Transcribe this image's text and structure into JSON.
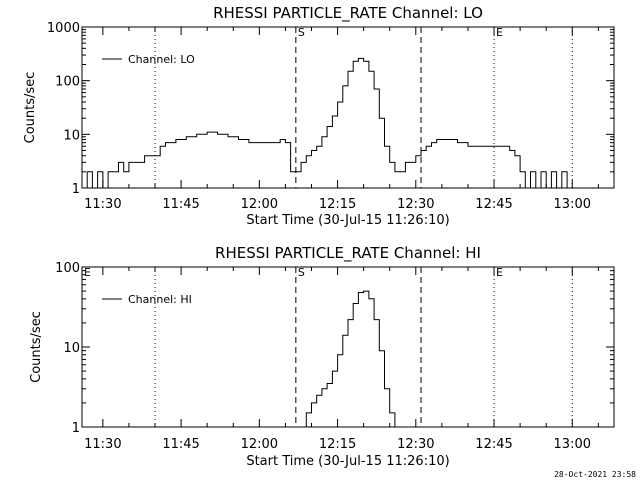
{
  "chart_data": [
    {
      "type": "line",
      "title": "RHESSI PARTICLE_RATE Channel: LO",
      "xlabel": "Start Time (30-Jul-15 11:26:10)",
      "ylabel": "Counts/sec",
      "y_scale": "log",
      "ylim": [
        1,
        1000
      ],
      "xlim": [
        "11:26",
        "13:08"
      ],
      "x_ticks": [
        "11:30",
        "11:45",
        "12:00",
        "12:15",
        "12:30",
        "12:45",
        "13:00"
      ],
      "y_ticks": [
        "1",
        "10",
        "100",
        "1000"
      ],
      "grid": false,
      "legend": {
        "placement": "top-left",
        "entries": [
          "Channel: LO"
        ]
      },
      "markers": [
        {
          "time": "11:40",
          "style": "dotted",
          "label": ""
        },
        {
          "time": "12:07",
          "style": "dashed",
          "label": "S"
        },
        {
          "time": "12:31",
          "style": "dashed",
          "label": ""
        },
        {
          "time": "12:45",
          "style": "dotted",
          "label": "E"
        },
        {
          "time": "13:00",
          "style": "dotted",
          "label": ""
        }
      ],
      "series": [
        {
          "name": "Channel: LO",
          "x": [
            "11:26",
            "11:27",
            "11:28",
            "11:29",
            "11:30",
            "11:31",
            "11:32",
            "11:33",
            "11:34",
            "11:35",
            "11:36",
            "11:37",
            "11:38",
            "11:39",
            "11:40",
            "11:41",
            "11:42",
            "11:44",
            "11:46",
            "11:48",
            "11:50",
            "11:52",
            "11:54",
            "11:56",
            "11:58",
            "12:00",
            "12:02",
            "12:04",
            "12:05",
            "12:06",
            "12:07",
            "12:08",
            "12:09",
            "12:10",
            "12:11",
            "12:12",
            "12:13",
            "12:14",
            "12:15",
            "12:16",
            "12:17",
            "12:18",
            "12:19",
            "12:20",
            "12:21",
            "12:22",
            "12:23",
            "12:24",
            "12:25",
            "12:26",
            "12:27",
            "12:28",
            "12:29",
            "12:30",
            "12:31",
            "12:32",
            "12:33",
            "12:34",
            "12:36",
            "12:38",
            "12:40",
            "12:42",
            "12:44",
            "12:46",
            "12:48",
            "12:49",
            "12:50",
            "12:51",
            "12:52",
            "12:53",
            "12:54",
            "12:55",
            "12:56",
            "12:57",
            "12:58",
            "12:59",
            "13:00",
            "13:01",
            "13:02",
            "13:03",
            "13:04",
            "13:05",
            "13:06",
            "13:07",
            "13:08"
          ],
          "y": [
            1,
            2,
            1,
            2,
            1,
            2,
            2,
            3,
            2,
            3,
            3,
            3,
            4,
            4,
            4,
            6,
            7,
            8,
            9,
            10,
            11,
            10,
            9,
            8,
            7,
            7,
            7,
            8,
            7,
            2,
            2,
            3,
            4,
            5,
            6,
            9,
            14,
            22,
            40,
            80,
            150,
            230,
            260,
            230,
            150,
            70,
            20,
            6,
            3,
            2,
            2,
            3,
            3,
            4,
            5,
            6,
            7,
            8,
            8,
            7,
            6,
            6,
            6,
            6,
            5,
            4,
            2,
            1,
            2,
            1,
            2,
            1,
            2,
            1,
            2,
            1,
            1,
            1,
            1,
            1,
            1,
            1,
            1,
            1,
            1
          ]
        }
      ]
    },
    {
      "type": "line",
      "title": "RHESSI PARTICLE_RATE Channel: HI",
      "xlabel": "Start Time (30-Jul-15 11:26:10)",
      "ylabel": "Counts/sec",
      "y_scale": "log",
      "ylim": [
        1,
        100
      ],
      "xlim": [
        "11:26",
        "13:08"
      ],
      "x_ticks": [
        "11:30",
        "11:45",
        "12:00",
        "12:15",
        "12:30",
        "12:45",
        "13:00"
      ],
      "y_ticks": [
        "1",
        "10",
        "100"
      ],
      "grid": false,
      "legend": {
        "placement": "top-left",
        "entries": [
          "Channel: HI"
        ]
      },
      "markers": [
        {
          "time": "11:26",
          "style": "none",
          "label": "E"
        },
        {
          "time": "11:40",
          "style": "dotted",
          "label": ""
        },
        {
          "time": "12:07",
          "style": "dashed",
          "label": "S"
        },
        {
          "time": "12:31",
          "style": "dashed",
          "label": ""
        },
        {
          "time": "12:45",
          "style": "dotted",
          "label": "E"
        },
        {
          "time": "13:00",
          "style": "dotted",
          "label": ""
        }
      ],
      "series": [
        {
          "name": "Channel: HI",
          "x": [
            "12:08",
            "12:09",
            "12:10",
            "12:11",
            "12:12",
            "12:13",
            "12:14",
            "12:15",
            "12:16",
            "12:17",
            "12:18",
            "12:19",
            "12:20",
            "12:21",
            "12:22",
            "12:23",
            "12:24",
            "12:25",
            "12:26"
          ],
          "y": [
            1,
            1.5,
            2,
            2.5,
            3,
            3.5,
            5,
            8,
            14,
            22,
            35,
            48,
            50,
            40,
            22,
            9,
            3,
            1.5,
            1
          ]
        }
      ]
    }
  ],
  "timestamp": "28-Oct-2021 23:58"
}
